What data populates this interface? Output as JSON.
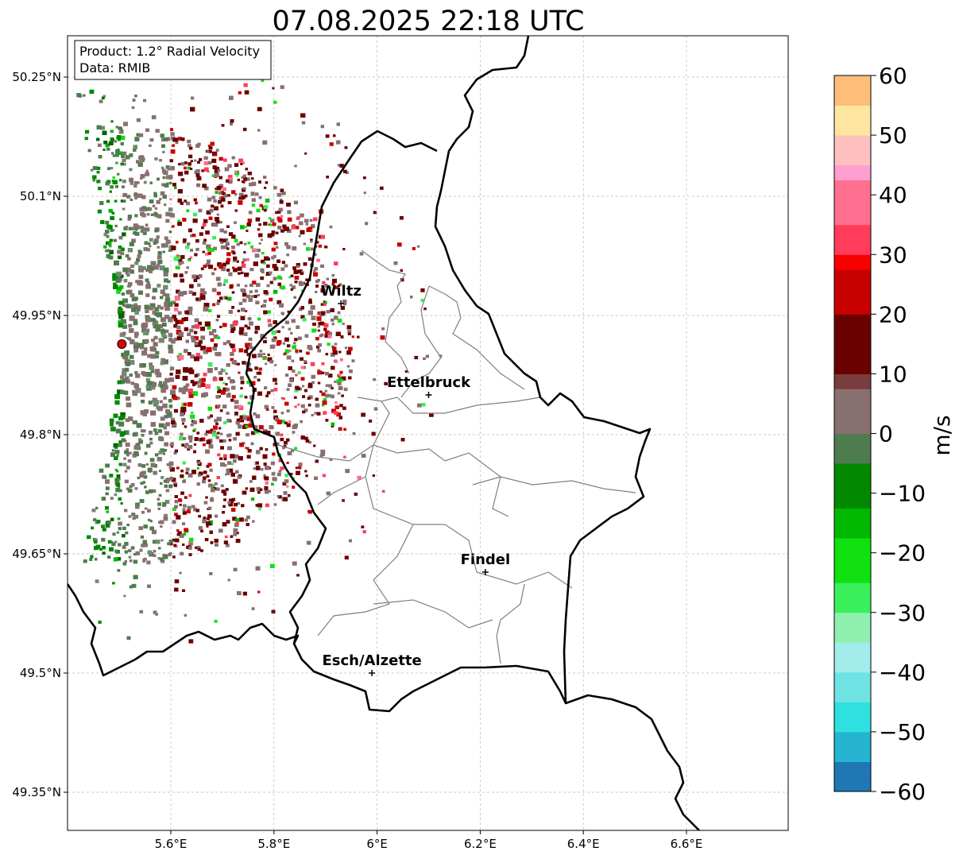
{
  "title": "07.08.2025 22:18 UTC",
  "info_box": {
    "product": "Product: 1.2° Radial Velocity",
    "data": "Data: RMIB"
  },
  "map": {
    "lon_range": [
      5.4,
      6.8
    ],
    "lat_range": [
      49.3,
      50.3
    ],
    "lon_ticks": [
      {
        "value": 5.6,
        "label": "5.6°E"
      },
      {
        "value": 5.8,
        "label": "5.8°E"
      },
      {
        "value": 6.0,
        "label": "6°E"
      },
      {
        "value": 6.2,
        "label": "6.2°E"
      },
      {
        "value": 6.4,
        "label": "6.4°E"
      },
      {
        "value": 6.6,
        "label": "6.6°E"
      }
    ],
    "lat_ticks": [
      {
        "value": 50.25,
        "label": "50.25°N"
      },
      {
        "value": 50.1,
        "label": "50.1°N"
      },
      {
        "value": 49.95,
        "label": "49.95°N"
      },
      {
        "value": 49.8,
        "label": "49.8°N"
      },
      {
        "value": 49.65,
        "label": "49.65°N"
      },
      {
        "value": 49.5,
        "label": "49.5°N"
      },
      {
        "value": 49.35,
        "label": "49.35°N"
      }
    ],
    "radar_site": {
      "lon": 5.505,
      "lat": 49.914
    },
    "cities": [
      {
        "name": "Wiltz",
        "lon": 5.93,
        "lat": 49.965
      },
      {
        "name": "Ettelbruck",
        "lon": 6.1,
        "lat": 49.85
      },
      {
        "name": "Findel",
        "lon": 6.21,
        "lat": 49.627
      },
      {
        "name": "Esch/Alzette",
        "lon": 5.99,
        "lat": 49.5
      }
    ]
  },
  "colorbar": {
    "label": "m/s",
    "min": -60,
    "max": 60,
    "ticks": [
      {
        "value": 60,
        "label": "60"
      },
      {
        "value": 50,
        "label": "50"
      },
      {
        "value": 40,
        "label": "40"
      },
      {
        "value": 30,
        "label": "30"
      },
      {
        "value": 20,
        "label": "20"
      },
      {
        "value": 10,
        "label": "10"
      },
      {
        "value": 0,
        "label": "0"
      },
      {
        "value": -10,
        "label": "−10"
      },
      {
        "value": -20,
        "label": "−20"
      },
      {
        "value": -30,
        "label": "−30"
      },
      {
        "value": -40,
        "label": "−40"
      },
      {
        "value": -50,
        "label": "−50"
      },
      {
        "value": -60,
        "label": "−60"
      }
    ],
    "color_stops": [
      {
        "v": -60,
        "c": "#1f77b4"
      },
      {
        "v": -55,
        "c": "#26b5d0"
      },
      {
        "v": -50,
        "c": "#2ee0e0"
      },
      {
        "v": -45,
        "c": "#6fe3e3"
      },
      {
        "v": -40,
        "c": "#a3ecec"
      },
      {
        "v": -36,
        "c": "#bff0ee"
      },
      {
        "v": -35,
        "c": "#8ff0b0"
      },
      {
        "v": -30,
        "c": "#3af05a"
      },
      {
        "v": -25,
        "c": "#10e010"
      },
      {
        "v": -18,
        "c": "#00b800"
      },
      {
        "v": -12,
        "c": "#008800"
      },
      {
        "v": -6,
        "c": "#006400"
      },
      {
        "v": -5,
        "c": "#4f7c4f"
      },
      {
        "v": 0,
        "c": "#728a72"
      },
      {
        "v": 1,
        "c": "#887070"
      },
      {
        "v": 8,
        "c": "#7a3c3c"
      },
      {
        "v": 9,
        "c": "#6b0000"
      },
      {
        "v": 20,
        "c": "#c80000"
      },
      {
        "v": 28,
        "c": "#f80000"
      },
      {
        "v": 29,
        "c": "#ff3d5a"
      },
      {
        "v": 36,
        "c": "#ff6f8f"
      },
      {
        "v": 42,
        "c": "#ff9ed0"
      },
      {
        "v": 46,
        "c": "#ffc0c0"
      },
      {
        "v": 50,
        "c": "#ffe6a0"
      },
      {
        "v": 56,
        "c": "#ffbe7a"
      },
      {
        "v": 60,
        "c": "#ff9a50"
      }
    ]
  }
}
